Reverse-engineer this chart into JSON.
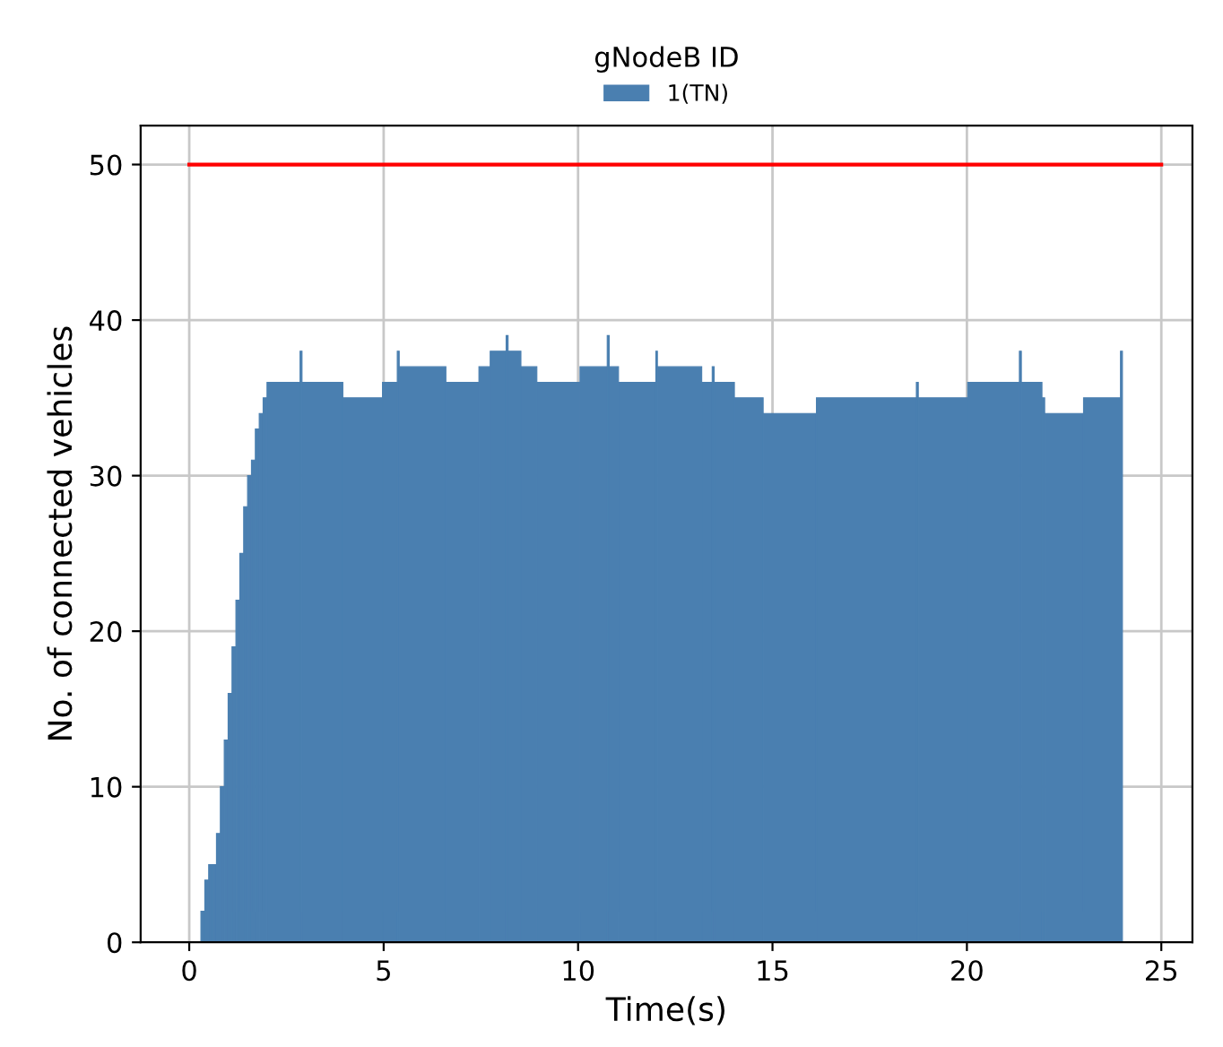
{
  "chart_data": {
    "type": "histogram",
    "xlabel": "Time(s)",
    "ylabel": "No. of connected vehicles",
    "legend_title": "gNodeB ID",
    "series": [
      {
        "name": "1(TN)",
        "color": "#4a7fb0",
        "bins": [
          0.3,
          0.4,
          0.5,
          0.6,
          0.7,
          0.8,
          0.9,
          1.0,
          1.1,
          1.2,
          1.3,
          1.4,
          1.5,
          1.6,
          1.7,
          1.8,
          1.9,
          2.0,
          2.85,
          2.9,
          3.95,
          4.97,
          5.35,
          5.4,
          6.6,
          7.45,
          7.74,
          8.15,
          8.2,
          8.53,
          8.94,
          10.05,
          10.75,
          10.8,
          11.04,
          12.0,
          12.04,
          13.18,
          13.45,
          13.5,
          14.02,
          14.76,
          16.13,
          18.7,
          18.75,
          20.02,
          21.35,
          21.4,
          21.93,
          22.0,
          23.0,
          23.95,
          24.0
        ],
        "values": [
          2,
          4,
          5,
          5,
          7,
          10,
          13,
          16,
          19,
          22,
          25,
          28,
          30,
          31,
          33,
          34,
          35,
          36,
          38,
          36,
          35,
          36,
          38,
          37,
          36,
          37,
          38,
          39,
          38,
          37,
          36,
          37,
          39,
          37,
          36,
          38,
          37,
          36,
          37,
          36,
          35,
          34,
          35,
          36,
          35,
          36,
          38,
          36,
          35,
          34,
          35,
          38
        ]
      },
      {
        "type": "line",
        "color": "#ff0000",
        "x": [
          0,
          25
        ],
        "values": [
          50,
          50
        ]
      }
    ],
    "xlim": [
      -1.25,
      25.8
    ],
    "ylim": [
      0,
      52.5
    ],
    "xticks": [
      0,
      5,
      10,
      15,
      20,
      25
    ],
    "yticks": [
      0,
      10,
      20,
      30,
      40,
      50
    ],
    "grid": true,
    "legend": "top"
  }
}
